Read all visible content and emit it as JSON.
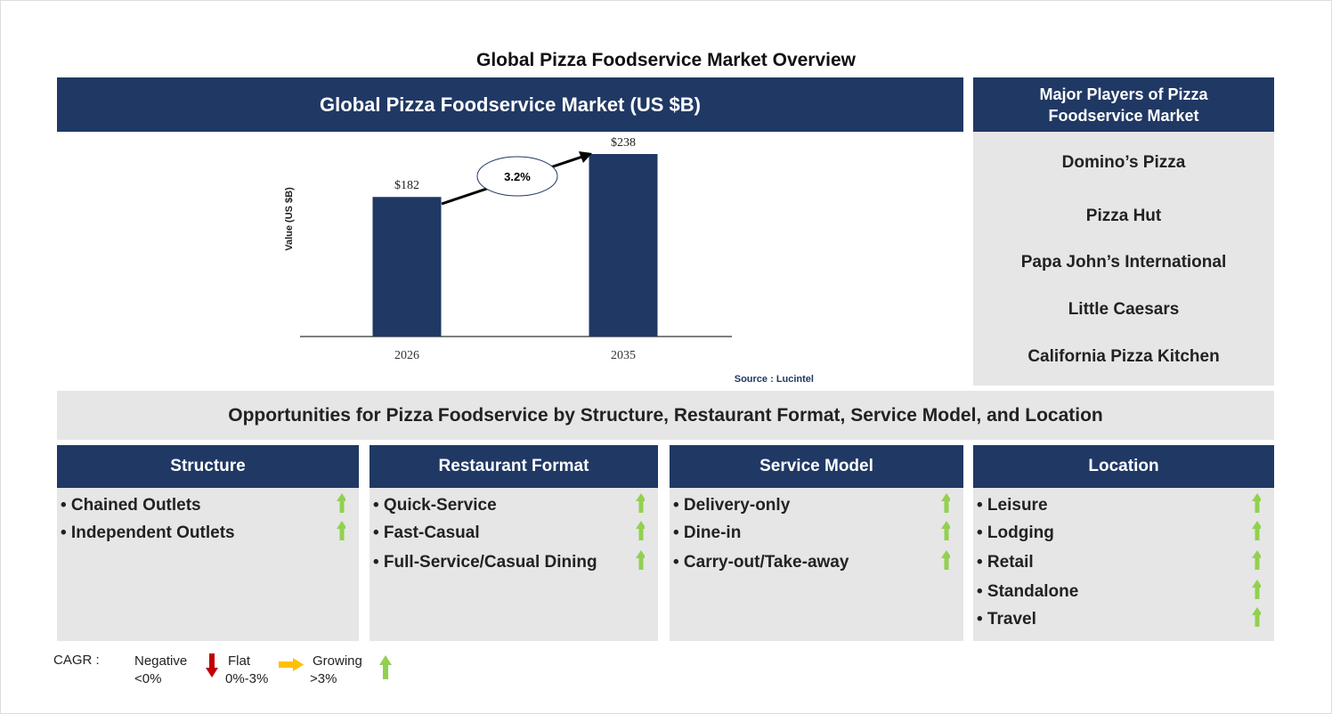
{
  "title": "Global Pizza Foodservice Market Overview",
  "chart_panel": {
    "header": "Global Pizza Foodservice Market (US $B)",
    "source": "Source : Lucintel"
  },
  "chart_data": {
    "type": "bar",
    "title": "Global Pizza Foodservice Market (US $B)",
    "categories": [
      "2026",
      "2035"
    ],
    "values": [
      182,
      238
    ],
    "data_labels": [
      "$182",
      "$238"
    ],
    "ylabel": "Value (US $B)",
    "ylim": [
      0,
      238
    ],
    "grid": false,
    "bar_color": "#203864",
    "annotation": "3.2%"
  },
  "players": {
    "header": "Major Players of Pizza Foodservice Market",
    "items": [
      "Domino’s Pizza",
      "Pizza Hut",
      "Papa John’s International",
      "Little Caesars",
      "California Pizza Kitchen"
    ]
  },
  "opportunities": {
    "header": "Opportunities for Pizza Foodservice by Structure, Restaurant Format, Service Model, and Location",
    "segments": [
      {
        "title": "Structure",
        "items": [
          "• Chained Outlets",
          "• Independent Outlets"
        ],
        "trend": [
          "growing",
          "growing"
        ]
      },
      {
        "title": "Restaurant Format",
        "items": [
          "• Quick-Service",
          "• Fast-Casual",
          "• Full-Service/Casual Dining"
        ],
        "trend": [
          "growing",
          "growing",
          "growing"
        ]
      },
      {
        "title": "Service Model",
        "items": [
          "• Delivery-only",
          "• Dine-in",
          "• Carry-out/Take-away"
        ],
        "trend": [
          "growing",
          "growing",
          "growing"
        ]
      },
      {
        "title": "Location",
        "items": [
          "• Leisure",
          "• Lodging",
          "• Retail",
          "• Standalone",
          "• Travel"
        ],
        "trend": [
          "growing",
          "growing",
          "growing",
          "growing",
          "growing"
        ]
      }
    ]
  },
  "legend": {
    "label": "CAGR :",
    "negative": {
      "name": "Negative",
      "range": "<0%",
      "color": "#c00000"
    },
    "flat": {
      "name": "Flat",
      "range": "0%-3%",
      "color": "#ffc000"
    },
    "growing": {
      "name": "Growing",
      "range": ">3%",
      "color": "#92d050"
    }
  }
}
